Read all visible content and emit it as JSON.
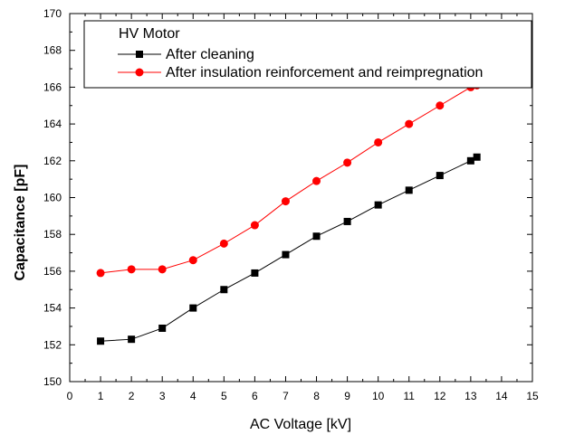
{
  "chart_data": {
    "type": "line",
    "title": "",
    "xlabel": "AC Voltage [kV]",
    "ylabel": "Capacitance [pF]",
    "xlim": [
      0,
      15
    ],
    "ylim": [
      150,
      170
    ],
    "x_ticks": [
      0,
      1,
      2,
      3,
      4,
      5,
      6,
      7,
      8,
      9,
      10,
      11,
      12,
      13,
      14,
      15
    ],
    "y_ticks": [
      150,
      152,
      154,
      156,
      158,
      160,
      162,
      164,
      166,
      168,
      170
    ],
    "grid": false,
    "legend": {
      "title": "HV Motor",
      "placement": "top"
    },
    "series": [
      {
        "name": "After cleaning",
        "color": "#000000",
        "marker": "square",
        "x": [
          1,
          2,
          3,
          4,
          5,
          6,
          7,
          8,
          9,
          10,
          11,
          12,
          13,
          13.2
        ],
        "values": [
          152.2,
          152.3,
          152.9,
          154.0,
          155.0,
          155.9,
          156.9,
          157.9,
          158.7,
          159.6,
          160.4,
          161.2,
          162.0,
          162.2
        ]
      },
      {
        "name": "After insulation reinforcement and reimpregnation",
        "color": "#ff0000",
        "marker": "circle",
        "x": [
          1,
          2,
          3,
          4,
          5,
          6,
          7,
          8,
          9,
          10,
          11,
          12,
          13,
          13.2
        ],
        "values": [
          155.9,
          156.1,
          156.1,
          156.6,
          157.5,
          158.5,
          159.8,
          160.9,
          161.9,
          163.0,
          164.0,
          165.0,
          166.0,
          166.1
        ]
      }
    ]
  }
}
